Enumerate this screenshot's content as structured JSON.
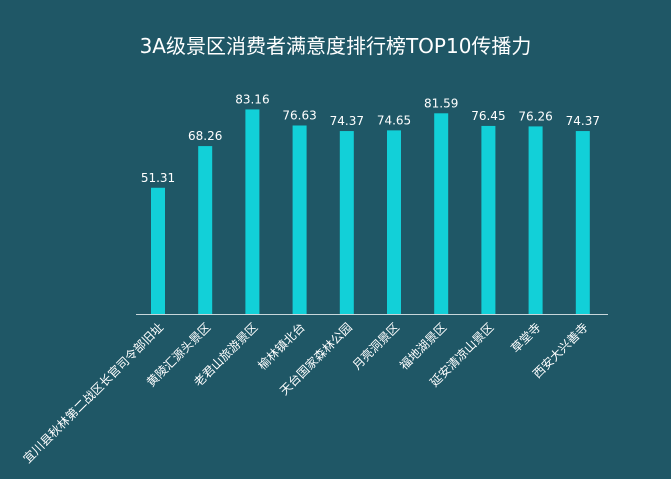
{
  "chart_data": {
    "type": "bar",
    "title": "3A级景区消费者满意度排行榜TOP10传播力",
    "xlabel": "",
    "ylabel": "",
    "categories": [
      "宜川县秋林第二战区长官司令部旧址",
      "黄陵汇源头景区",
      "老君山旅游景区",
      "榆林镇北台",
      "天台国家森林公园",
      "月亮洞景区",
      "福地湖景区",
      "延安清凉山景区",
      "草堂寺",
      "西安大兴善寺"
    ],
    "values": [
      51.31,
      68.26,
      83.16,
      76.63,
      74.37,
      74.65,
      81.59,
      76.45,
      76.26,
      74.37
    ],
    "ylim": [
      0,
      90
    ],
    "grid": false,
    "legend": "none",
    "colors": {
      "bar": "#12d0d8",
      "background": "#1f5766",
      "text": "#ffffff"
    }
  }
}
